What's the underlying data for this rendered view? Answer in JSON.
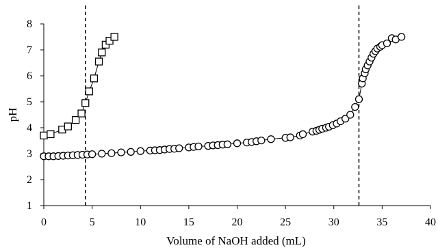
{
  "chart_data": {
    "type": "scatter",
    "xlabel": "Volume of NaOH added (mL)",
    "ylabel": "pH",
    "xlim": [
      0,
      40
    ],
    "ylim": [
      1,
      8
    ],
    "xticks": [
      0,
      5,
      10,
      15,
      20,
      25,
      30,
      35,
      40
    ],
    "yticks": [
      1,
      2,
      3,
      4,
      5,
      6,
      7,
      8
    ],
    "grid": false,
    "legend": "none",
    "vertical_dashed_lines": [
      4.3,
      32.6
    ],
    "series": [
      {
        "marker": "square",
        "color": "#000000",
        "x": [
          0,
          0.7,
          1.9,
          2.5,
          3.3,
          3.9,
          4.3,
          4.7,
          5.2,
          5.7,
          6.0,
          6.4,
          6.8,
          7.3
        ],
        "y": [
          3.7,
          3.75,
          3.93,
          4.05,
          4.3,
          4.55,
          4.95,
          5.4,
          5.9,
          6.55,
          6.9,
          7.2,
          7.35,
          7.5
        ]
      },
      {
        "marker": "circle",
        "color": "#000000",
        "x": [
          0,
          0.5,
          1.0,
          1.5,
          2.0,
          2.5,
          3.0,
          3.5,
          4.0,
          4.5,
          5.0,
          6.0,
          7.0,
          8.0,
          9.0,
          10.0,
          11.0,
          11.5,
          12.0,
          12.5,
          13.0,
          13.5,
          14.0,
          15.0,
          15.5,
          16.0,
          17.0,
          17.5,
          18.0,
          18.5,
          19.0,
          20.0,
          21.0,
          21.5,
          22.0,
          22.5,
          23.5,
          25.0,
          25.5,
          26.5,
          26.8,
          27.8,
          28.2,
          28.5,
          28.8,
          29.2,
          29.5,
          29.9,
          30.3,
          30.7,
          31.2,
          31.7,
          32.2,
          32.6,
          32.9,
          33.0,
          33.2,
          33.3,
          33.5,
          33.7,
          33.9,
          34.1,
          34.3,
          34.5,
          34.8,
          35.0,
          35.5,
          36.0,
          36.4,
          37.0
        ],
        "y": [
          2.9,
          2.9,
          2.9,
          2.91,
          2.92,
          2.93,
          2.94,
          2.95,
          2.96,
          2.97,
          2.98,
          3.0,
          3.02,
          3.05,
          3.07,
          3.1,
          3.12,
          3.13,
          3.14,
          3.16,
          3.18,
          3.19,
          3.21,
          3.24,
          3.26,
          3.28,
          3.3,
          3.32,
          3.33,
          3.35,
          3.36,
          3.4,
          3.43,
          3.45,
          3.48,
          3.51,
          3.56,
          3.61,
          3.63,
          3.7,
          3.75,
          3.85,
          3.88,
          3.92,
          3.96,
          4.0,
          4.04,
          4.1,
          4.16,
          4.25,
          4.35,
          4.5,
          4.8,
          5.1,
          5.7,
          5.9,
          6.1,
          6.25,
          6.4,
          6.55,
          6.7,
          6.85,
          6.95,
          7.05,
          7.12,
          7.18,
          7.25,
          7.45,
          7.4,
          7.5
        ]
      }
    ]
  }
}
